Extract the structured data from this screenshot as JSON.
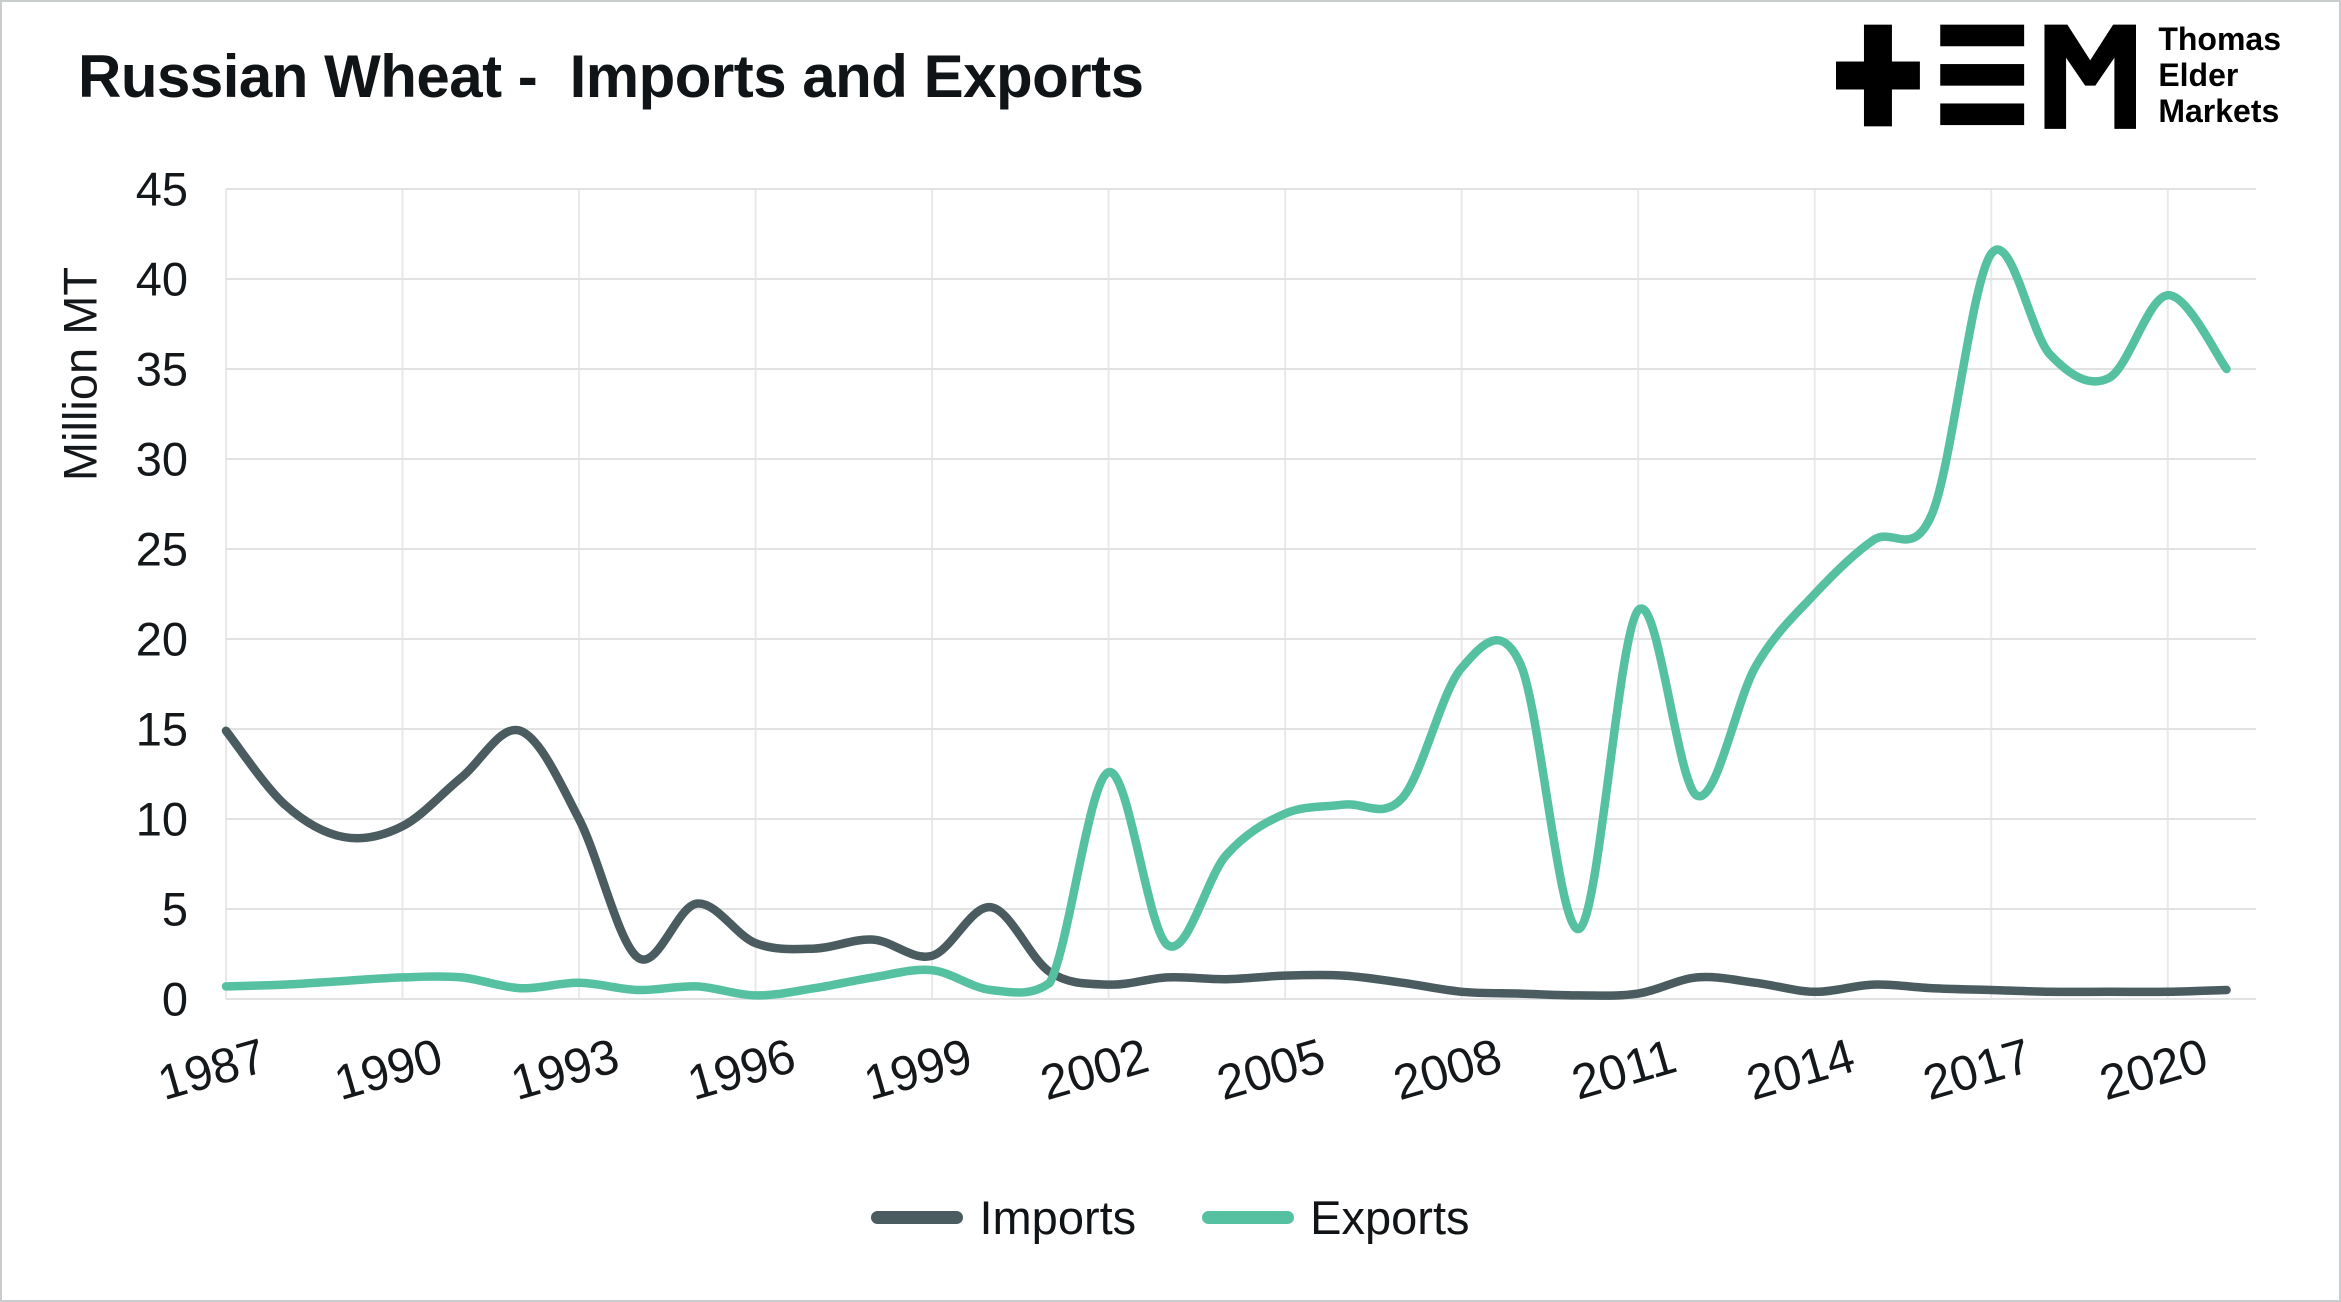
{
  "header": {
    "title": "Russian Wheat -  Imports and Exports"
  },
  "logo": {
    "lines": [
      "Thomas",
      "Elder",
      "Markets"
    ]
  },
  "legend": [
    {
      "label": "Imports",
      "color": "#4a5c60"
    },
    {
      "label": "Exports",
      "color": "#56c1a1"
    }
  ],
  "chart_data": {
    "type": "line",
    "title": "Russian Wheat - Imports and Exports",
    "ylabel": "Million MT",
    "ylim": [
      0,
      45
    ],
    "ytick_step": 5,
    "xlim": [
      1987,
      2021.5
    ],
    "xticks": [
      1987,
      1990,
      1993,
      1996,
      1999,
      2002,
      2005,
      2008,
      2011,
      2014,
      2017,
      2020
    ],
    "grid": true,
    "legend_position": "bottom",
    "x": [
      1987,
      1988,
      1989,
      1990,
      1991,
      1992,
      1993,
      1994,
      1995,
      1996,
      1997,
      1998,
      1999,
      2000,
      2001,
      2002,
      2003,
      2004,
      2005,
      2006,
      2007,
      2008,
      2009,
      2010,
      2011,
      2012,
      2013,
      2014,
      2015,
      2016,
      2017,
      2018,
      2019,
      2020,
      2021
    ],
    "series": [
      {
        "name": "Imports",
        "color": "#4a5c60",
        "values": [
          14.9,
          10.8,
          9.0,
          9.6,
          12.3,
          14.9,
          10.0,
          2.3,
          5.3,
          3.1,
          2.8,
          3.3,
          2.4,
          5.1,
          1.5,
          0.8,
          1.2,
          1.1,
          1.3,
          1.3,
          0.9,
          0.4,
          0.3,
          0.2,
          0.3,
          1.2,
          0.9,
          0.4,
          0.8,
          0.6,
          0.5,
          0.4,
          0.4,
          0.4,
          0.5
        ]
      },
      {
        "name": "Exports",
        "color": "#56c1a1",
        "values": [
          0.7,
          0.8,
          1.0,
          1.2,
          1.2,
          0.6,
          0.9,
          0.5,
          0.7,
          0.2,
          0.6,
          1.2,
          1.6,
          0.5,
          0.9,
          12.6,
          3.0,
          8.0,
          10.3,
          10.8,
          11.2,
          18.4,
          18.6,
          3.9,
          21.6,
          11.3,
          18.5,
          22.5,
          25.5,
          27.0,
          41.4,
          35.8,
          34.5,
          39.1,
          35.0
        ]
      }
    ],
    "colors": {
      "grid_horizontal": "#e2e2e2",
      "grid_vertical": "#e9e9e9",
      "text": "#14181a"
    }
  }
}
